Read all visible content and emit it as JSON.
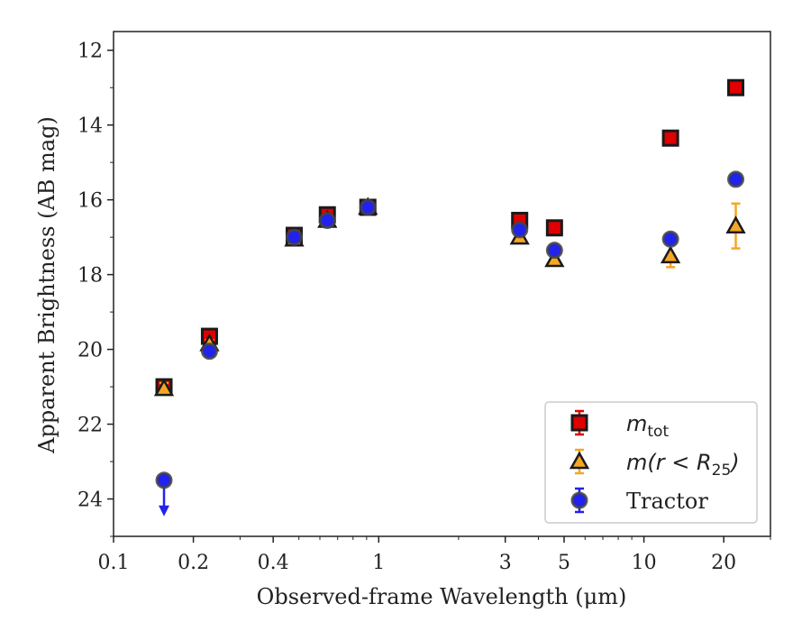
{
  "chart_data": {
    "type": "scatter",
    "title": "",
    "xlabel": "Observed-frame Wavelength (μm)",
    "ylabel": "Apparent Brightness (AB mag)",
    "xscale": "log",
    "xlim": [
      0.1,
      30
    ],
    "ylim": [
      25,
      11.5
    ],
    "y_inverted": true,
    "x_ticks": [
      {
        "value": 0.1,
        "label": "0.1"
      },
      {
        "value": 0.2,
        "label": "0.2"
      },
      {
        "value": 0.4,
        "label": "0.4"
      },
      {
        "value": 1,
        "label": "1"
      },
      {
        "value": 3,
        "label": "3"
      },
      {
        "value": 5,
        "label": "5"
      },
      {
        "value": 10,
        "label": "10"
      },
      {
        "value": 20,
        "label": "20"
      }
    ],
    "y_ticks": [
      12,
      14,
      16,
      18,
      20,
      22,
      24
    ],
    "grid": false,
    "legend_position": "bottom-right",
    "legend": [
      {
        "label": "m",
        "sub": "tot",
        "series": "m_tot"
      },
      {
        "label": "m(r < R",
        "sub": "25",
        "suffix": ")",
        "series": "m_r25"
      },
      {
        "label": "Tractor",
        "series": "tractor"
      }
    ],
    "series": [
      {
        "key": "m_tot",
        "marker": "square",
        "color": "#e00000",
        "edge": "#1a1a1a",
        "error_color": "#e00000",
        "points": [
          {
            "x": 0.155,
            "y": 21.0,
            "err": 0.1
          },
          {
            "x": 0.23,
            "y": 19.65,
            "err": 0.1
          },
          {
            "x": 0.48,
            "y": 16.95,
            "err": 0.05
          },
          {
            "x": 0.64,
            "y": 16.4,
            "err": 0.05
          },
          {
            "x": 0.91,
            "y": 16.2,
            "err": 0.05
          },
          {
            "x": 3.4,
            "y": 16.55,
            "err": 0.05
          },
          {
            "x": 4.6,
            "y": 16.75,
            "err": 0.05
          },
          {
            "x": 12.6,
            "y": 14.35,
            "err": 0.05
          },
          {
            "x": 22.2,
            "y": 13.0,
            "err": 0.05
          }
        ]
      },
      {
        "key": "m_r25",
        "marker": "triangle",
        "color": "#f5a623",
        "edge": "#1a1a1a",
        "error_color": "#f5a623",
        "points": [
          {
            "x": 0.155,
            "y": 21.05,
            "err": 0.15
          },
          {
            "x": 0.23,
            "y": 19.85,
            "err": 0.1
          },
          {
            "x": 0.48,
            "y": 17.05,
            "err": 0.05
          },
          {
            "x": 0.64,
            "y": 16.55,
            "err": 0.05
          },
          {
            "x": 0.91,
            "y": 16.2,
            "err": 0.05
          },
          {
            "x": 3.4,
            "y": 17.0,
            "err": 0.05
          },
          {
            "x": 4.6,
            "y": 17.6,
            "err": 0.1
          },
          {
            "x": 12.6,
            "y": 17.5,
            "err": 0.3
          },
          {
            "x": 22.2,
            "y": 16.7,
            "err": 0.6
          }
        ]
      },
      {
        "key": "tractor",
        "marker": "circle",
        "color": "#2222ee",
        "edge": "#444444",
        "error_color": "#2222ee",
        "points": [
          {
            "x": 0.155,
            "y": 23.5,
            "err": 0,
            "upper_limit": true
          },
          {
            "x": 0.23,
            "y": 20.05,
            "err": 0.05
          },
          {
            "x": 0.48,
            "y": 17.0,
            "err": 0.05
          },
          {
            "x": 0.64,
            "y": 16.55,
            "err": 0.05
          },
          {
            "x": 0.91,
            "y": 16.2,
            "err": 0.05
          },
          {
            "x": 3.4,
            "y": 16.8,
            "err": 0.05
          },
          {
            "x": 4.6,
            "y": 17.35,
            "err": 0.05
          },
          {
            "x": 12.6,
            "y": 17.05,
            "err": 0.05
          },
          {
            "x": 22.2,
            "y": 15.45,
            "err": 0.05
          }
        ]
      }
    ]
  }
}
